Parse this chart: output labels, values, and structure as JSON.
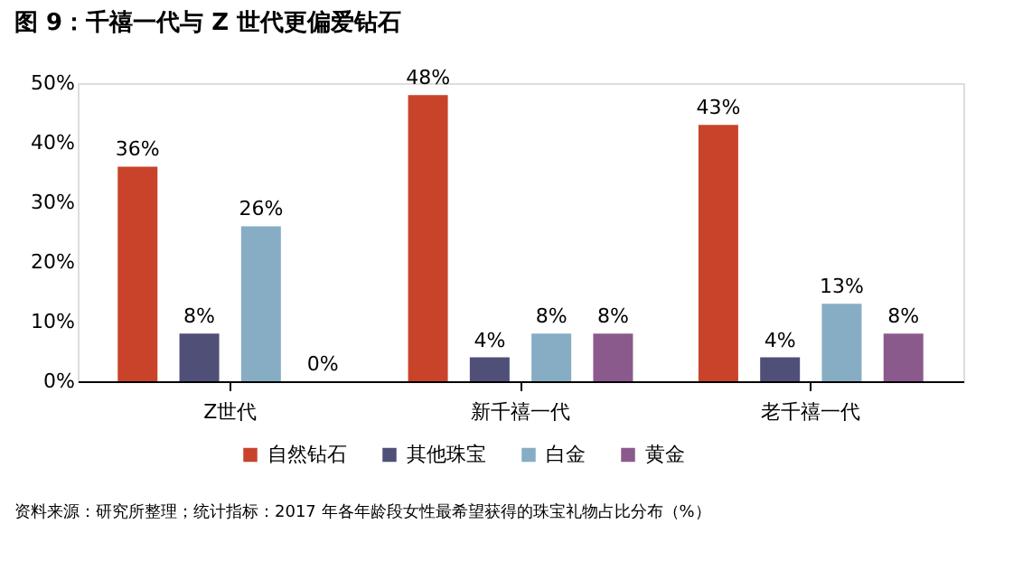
{
  "chart_data": {
    "type": "bar",
    "title": "图 9：千禧一代与 Z 世代更偏爱钻石",
    "categories": [
      "Z世代",
      "新千禧一代",
      "老千禧一代"
    ],
    "series": [
      {
        "name": "自然钻石",
        "color": "#c9432a",
        "values": [
          36,
          48,
          43
        ]
      },
      {
        "name": "其他珠宝",
        "color": "#4f4f78",
        "values": [
          8,
          4,
          4
        ]
      },
      {
        "name": "白金",
        "color": "#86adc4",
        "values": [
          26,
          8,
          13
        ]
      },
      {
        "name": "黄金",
        "color": "#8b5a8c",
        "values": [
          0,
          8,
          8
        ]
      }
    ],
    "value_labels": [
      [
        "36%",
        "48%",
        "43%"
      ],
      [
        "8%",
        "4%",
        "4%"
      ],
      [
        "26%",
        "8%",
        "13%"
      ],
      [
        "0%",
        "8%",
        "8%"
      ]
    ],
    "ylim": [
      0,
      50
    ],
    "yticks": [
      {
        "value": 0,
        "label": "0%"
      },
      {
        "value": 10,
        "label": "10%"
      },
      {
        "value": 20,
        "label": "20%"
      },
      {
        "value": 30,
        "label": "30%"
      },
      {
        "value": 40,
        "label": "40%"
      },
      {
        "value": 50,
        "label": "50%"
      }
    ],
    "grid": false,
    "legend": "bottom",
    "annotations": [
      "资料来源：研究所整理；统计指标：2017 年各年龄段女性最希望获得的珠宝礼物占比分布（%）"
    ]
  }
}
